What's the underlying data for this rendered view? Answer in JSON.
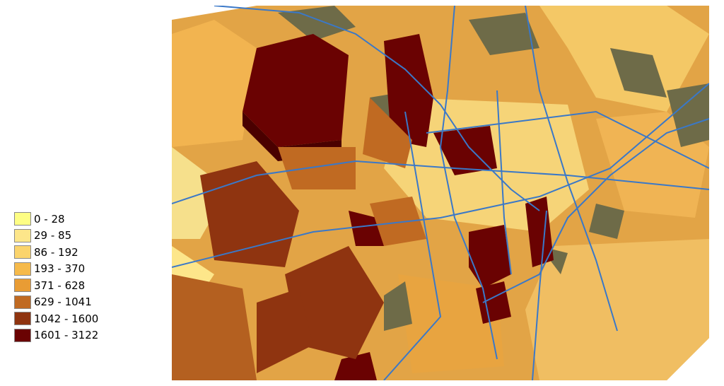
{
  "legend": {
    "items": [
      {
        "label": "0 - 28",
        "color": "#fefe84"
      },
      {
        "label": "29 - 85",
        "color": "#fde68a"
      },
      {
        "label": "86 - 192",
        "color": "#fbd46c"
      },
      {
        "label": "193 - 370",
        "color": "#f6ba4a"
      },
      {
        "label": "371 - 628",
        "color": "#e99c34"
      },
      {
        "label": "629 - 1041",
        "color": "#c06a22"
      },
      {
        "label": "1042 - 1600",
        "color": "#8f3410"
      },
      {
        "label": "1601 - 3122",
        "color": "#6a0202"
      }
    ]
  },
  "map": {
    "road_color": "#3a78c8",
    "open_land_color": "#6e6b48",
    "extrusion_shadow_color": "#4a0000"
  }
}
